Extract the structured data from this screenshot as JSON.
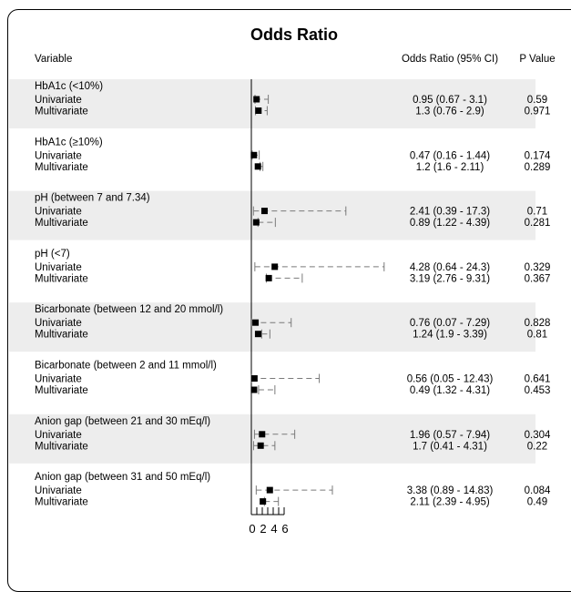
{
  "chart_data": {
    "type": "forest",
    "title": "Odds Ratio",
    "columns": {
      "variable": "Variable",
      "or_ci": "Odds Ratio (95% CI)",
      "p_value": "P Value"
    },
    "groups": [
      {
        "label": "HbA1c (<10%)",
        "rows": [
          {
            "label": "Univariate",
            "or": 0.95,
            "lo": 0.67,
            "hi": 3.1,
            "ci_text": "0.95 (0.67 - 3.1)",
            "p": "0.59"
          },
          {
            "label": "Multivariate",
            "or": 1.3,
            "lo": 0.76,
            "hi": 2.9,
            "ci_text": "1.3 (0.76 - 2.9)",
            "p": "0.971"
          }
        ]
      },
      {
        "label": "HbA1c (≥10%)",
        "rows": [
          {
            "label": "Univariate",
            "or": 0.47,
            "lo": 0.16,
            "hi": 1.44,
            "ci_text": "0.47 (0.16 - 1.44)",
            "p": "0.174"
          },
          {
            "label": "Multivariate",
            "or": 1.2,
            "lo": 1.6,
            "hi": 2.11,
            "ci_text": "1.2 (1.6 - 2.11)",
            "p": "0.289"
          }
        ]
      },
      {
        "label": "pH (between 7 and 7.34)",
        "rows": [
          {
            "label": "Univariate",
            "or": 2.41,
            "lo": 0.39,
            "hi": 17.3,
            "ci_text": "2.41 (0.39 - 17.3)",
            "p": "0.71"
          },
          {
            "label": "Multivariate",
            "or": 0.89,
            "lo": 1.22,
            "hi": 4.39,
            "ci_text": "0.89 (1.22 - 4.39)",
            "p": "0.281"
          }
        ]
      },
      {
        "label": "pH (<7)",
        "rows": [
          {
            "label": "Univariate",
            "or": 4.28,
            "lo": 0.64,
            "hi": 24.3,
            "ci_text": "4.28 (0.64 - 24.3)",
            "p": "0.329"
          },
          {
            "label": "Multivariate",
            "or": 3.19,
            "lo": 2.76,
            "hi": 9.31,
            "ci_text": "3.19 (2.76 - 9.31)",
            "p": "0.367"
          }
        ]
      },
      {
        "label": "Bicarbonate (between 12 and 20 mmol/l)",
        "rows": [
          {
            "label": "Univariate",
            "or": 0.76,
            "lo": 0.07,
            "hi": 7.29,
            "ci_text": "0.76 (0.07 - 7.29)",
            "p": "0.828"
          },
          {
            "label": "Multivariate",
            "or": 1.24,
            "lo": 1.9,
            "hi": 3.39,
            "ci_text": "1.24 (1.9 - 3.39)",
            "p": "0.81"
          }
        ]
      },
      {
        "label": "Bicarbonate (between 2 and 11 mmol/l)",
        "rows": [
          {
            "label": "Univariate",
            "or": 0.56,
            "lo": 0.05,
            "hi": 12.43,
            "ci_text": "0.56 (0.05 - 12.43)",
            "p": "0.641"
          },
          {
            "label": "Multivariate",
            "or": 0.49,
            "lo": 1.32,
            "hi": 4.31,
            "ci_text": "0.49 (1.32 - 4.31)",
            "p": "0.453"
          }
        ]
      },
      {
        "label": "Anion gap (between 21 and 30 mEq/l)",
        "rows": [
          {
            "label": "Univariate",
            "or": 1.96,
            "lo": 0.57,
            "hi": 7.94,
            "ci_text": "1.96 (0.57 - 7.94)",
            "p": "0.304"
          },
          {
            "label": "Multivariate",
            "or": 1.7,
            "lo": 0.41,
            "hi": 4.31,
            "ci_text": "1.7 (0.41 - 4.31)",
            "p": "0.22"
          }
        ]
      },
      {
        "label": "Anion gap (between 31 and 50 mEq/l)",
        "rows": [
          {
            "label": "Univariate",
            "or": 3.38,
            "lo": 0.89,
            "hi": 14.83,
            "ci_text": "3.38 (0.89 - 14.83)",
            "p": "0.084"
          },
          {
            "label": "Multivariate",
            "or": 2.11,
            "lo": 2.39,
            "hi": 4.95,
            "ci_text": "2.11 (2.39 - 4.95)",
            "p": "0.49"
          }
        ]
      }
    ],
    "x_axis": {
      "ticks": [
        0,
        2,
        4,
        6
      ],
      "tick_labels": [
        "0",
        "2",
        "4",
        "6"
      ],
      "range_shown": [
        0,
        24.3
      ]
    },
    "reference_line": 0,
    "group_shading": "#ededed",
    "ci_color": "#7a7a7a",
    "point_color": "#000000"
  }
}
